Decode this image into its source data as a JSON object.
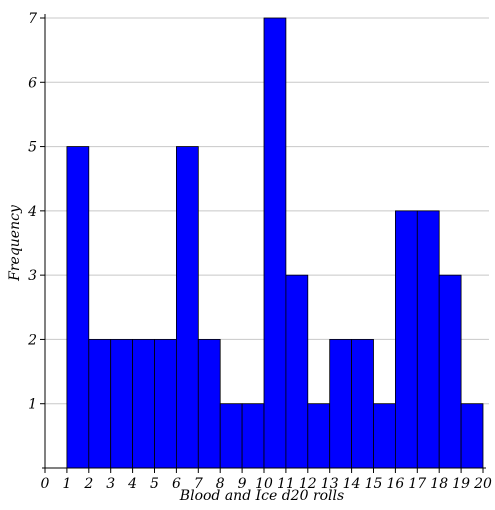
{
  "chart_data": {
    "type": "bar",
    "title": "",
    "xlabel": "Blood and Ice d20 rolls",
    "ylabel": "Frequency",
    "xlim": [
      0,
      20
    ],
    "ylim": [
      0,
      7
    ],
    "x_ticks": [
      0,
      1,
      2,
      3,
      4,
      5,
      6,
      7,
      8,
      9,
      10,
      11,
      12,
      13,
      14,
      15,
      16,
      17,
      18,
      19,
      20
    ],
    "y_ticks": [
      1,
      2,
      3,
      4,
      5,
      6,
      7
    ],
    "grid": "horizontal",
    "bins": [
      {
        "start": 1,
        "end": 2,
        "value": 5
      },
      {
        "start": 2,
        "end": 3,
        "value": 2
      },
      {
        "start": 3,
        "end": 4,
        "value": 2
      },
      {
        "start": 4,
        "end": 5,
        "value": 2
      },
      {
        "start": 5,
        "end": 6,
        "value": 2
      },
      {
        "start": 6,
        "end": 7,
        "value": 5
      },
      {
        "start": 7,
        "end": 8,
        "value": 2
      },
      {
        "start": 8,
        "end": 9,
        "value": 1
      },
      {
        "start": 9,
        "end": 10,
        "value": 1
      },
      {
        "start": 10,
        "end": 11,
        "value": 7
      },
      {
        "start": 11,
        "end": 12,
        "value": 3
      },
      {
        "start": 12,
        "end": 13,
        "value": 1
      },
      {
        "start": 13,
        "end": 14,
        "value": 2
      },
      {
        "start": 14,
        "end": 15,
        "value": 2
      },
      {
        "start": 15,
        "end": 16,
        "value": 1
      },
      {
        "start": 16,
        "end": 17,
        "value": 4
      },
      {
        "start": 17,
        "end": 18,
        "value": 4
      },
      {
        "start": 18,
        "end": 19,
        "value": 3
      },
      {
        "start": 19,
        "end": 20,
        "value": 1
      }
    ],
    "colors": {
      "bar": "#0000ff",
      "bar_edge": "#000000",
      "grid": "#c8c8c8",
      "axis": "#000000"
    }
  }
}
